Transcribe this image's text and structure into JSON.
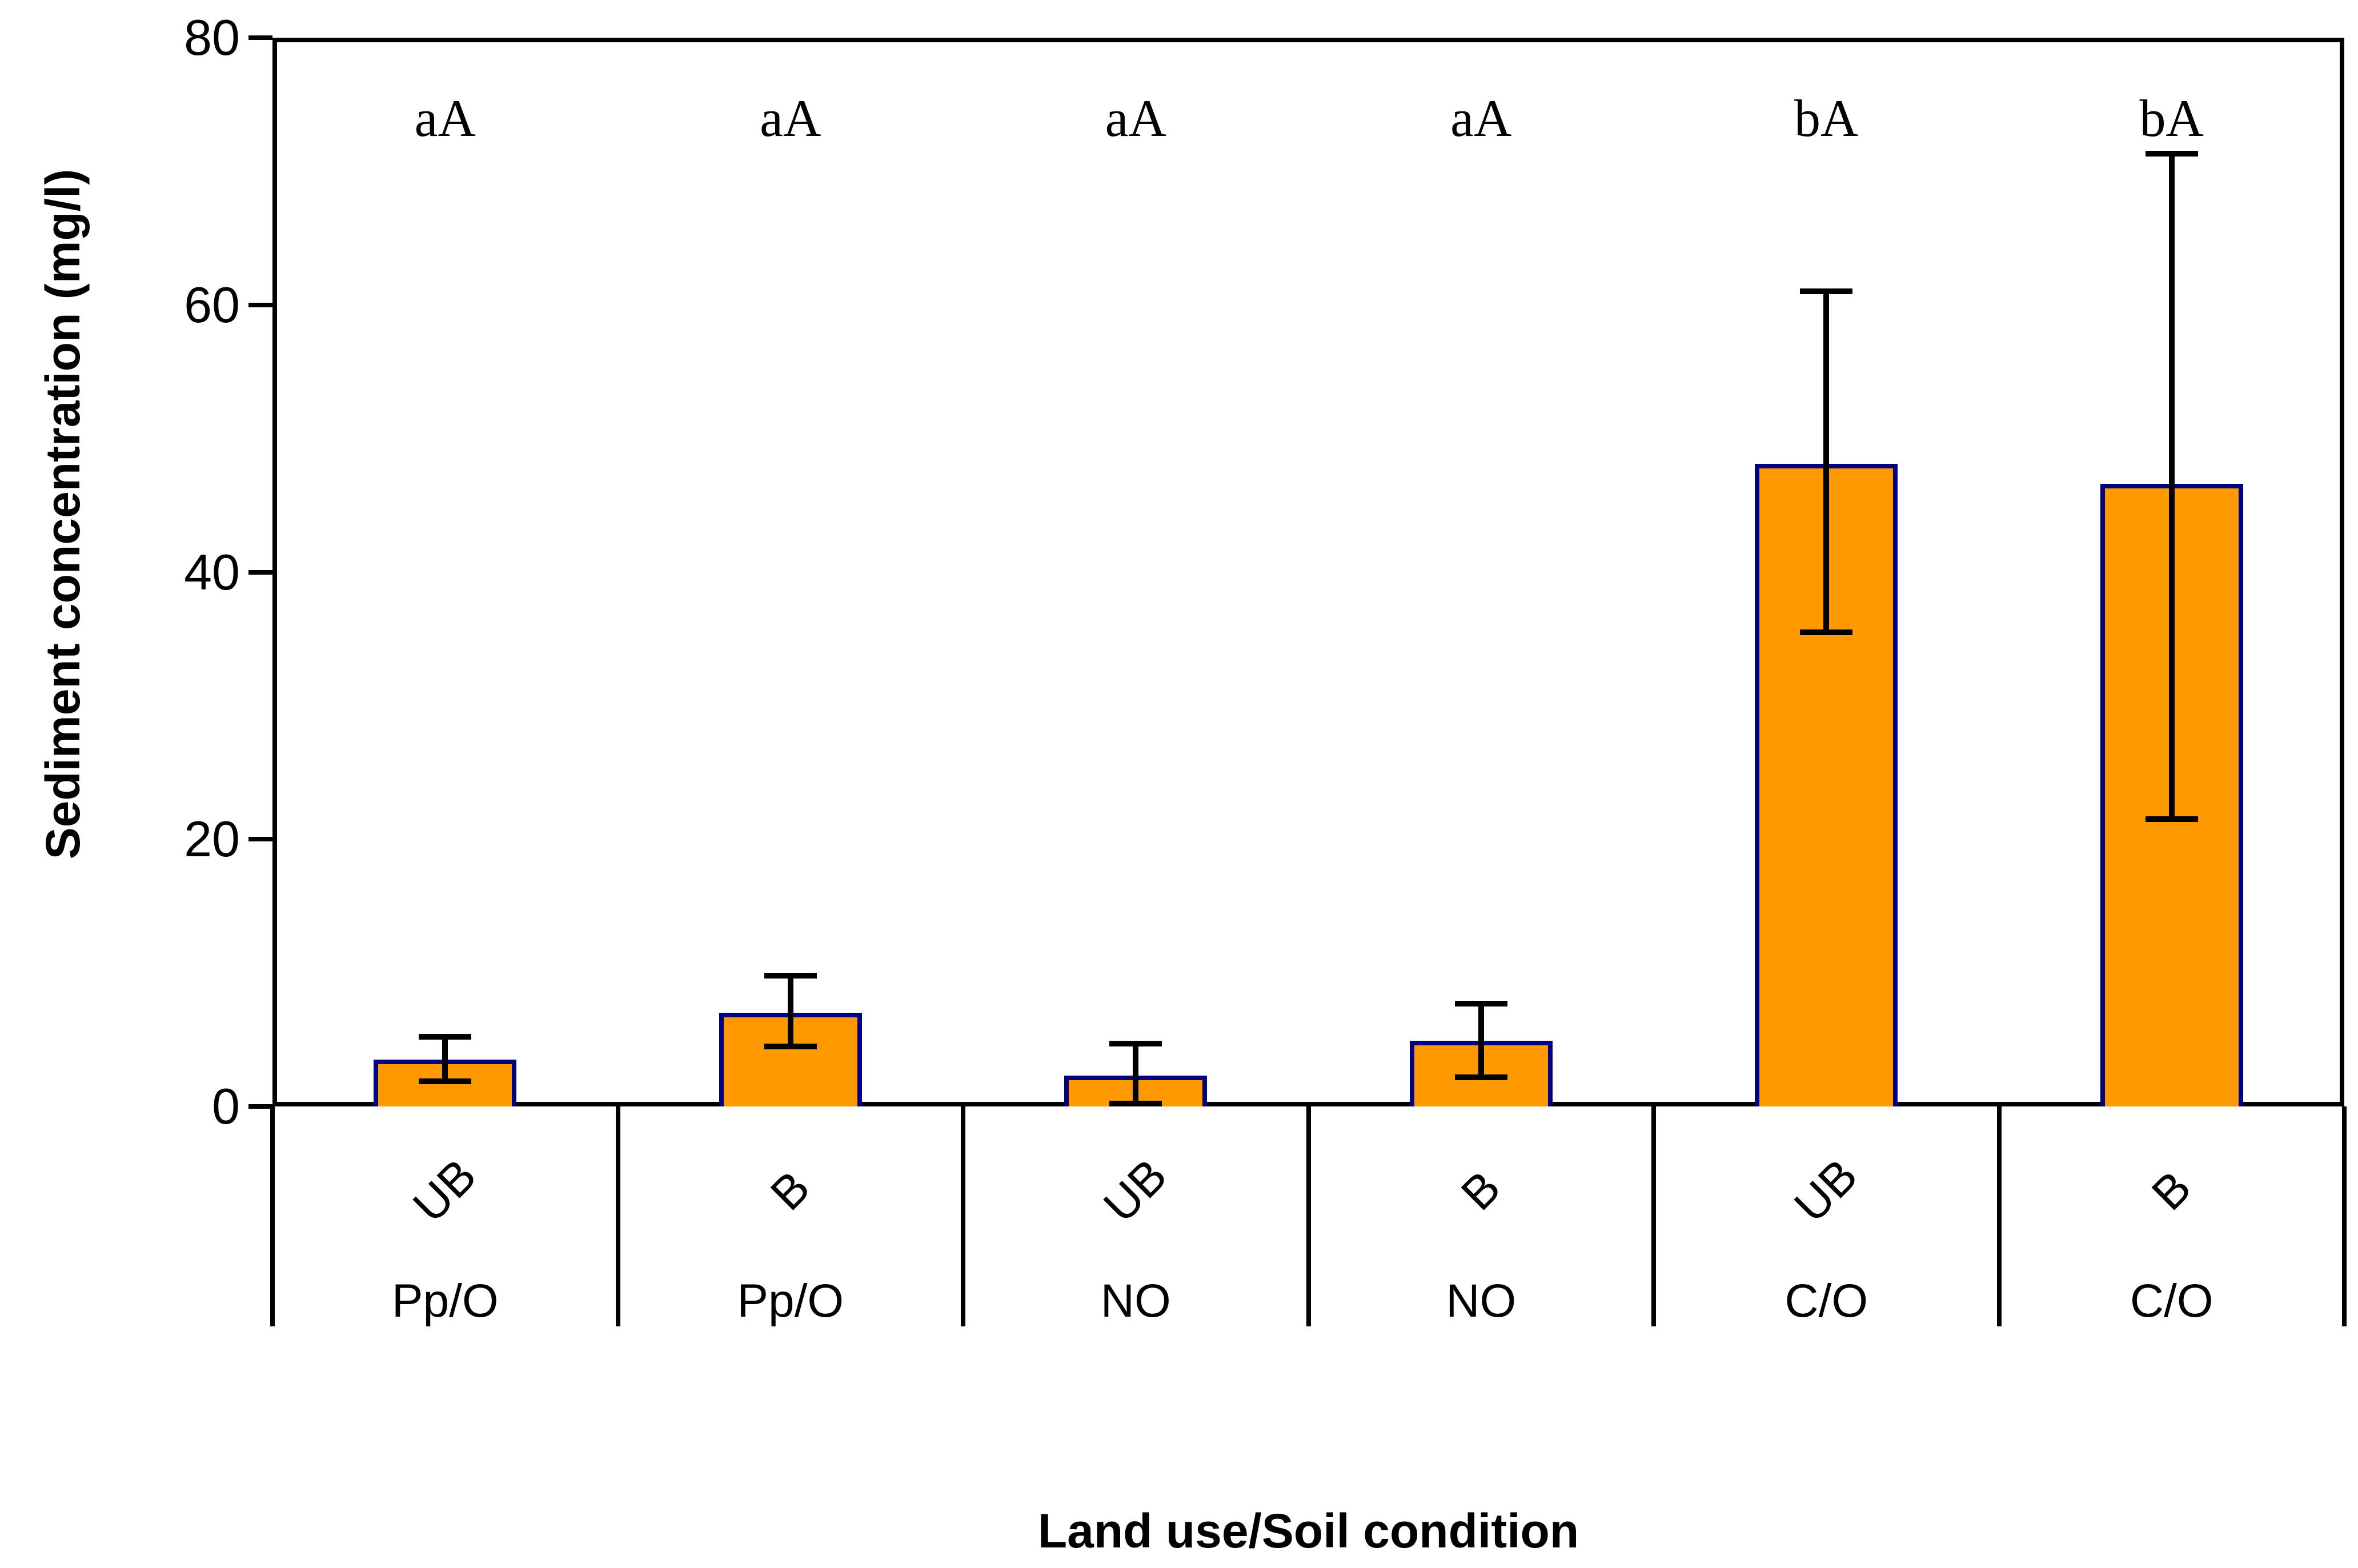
{
  "chart_data": {
    "type": "bar",
    "title": "",
    "xlabel": "Land use/Soil condition",
    "ylabel": "Sediment concentration (mg/l)",
    "ylim": [
      0,
      80
    ],
    "yticks": [
      0,
      20,
      40,
      60,
      80
    ],
    "grid": false,
    "legend": null,
    "bar_fill_color": "#FF9900",
    "bar_border_color": "#000080",
    "categories_soil_condition": [
      "UB",
      "B",
      "UB",
      "B",
      "UB",
      "B"
    ],
    "categories_land_use": [
      "Pp/O",
      "Pp/O",
      "NO",
      "NO",
      "C/O",
      "C/O"
    ],
    "series": [
      {
        "name": "Sediment concentration",
        "values": [
          3.5,
          7.0,
          2.3,
          4.9,
          48.1,
          46.6
        ],
        "error_bar_low": [
          1.9,
          4.5,
          0.2,
          2.2,
          35.5,
          21.5
        ],
        "error_bar_high": [
          5.2,
          9.8,
          4.7,
          7.7,
          61.0,
          71.3
        ]
      }
    ],
    "annotations": [
      "aA",
      "aA",
      "aA",
      "aA",
      "bA",
      "bA"
    ]
  }
}
